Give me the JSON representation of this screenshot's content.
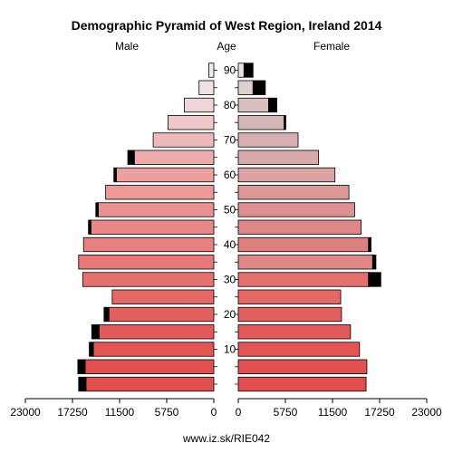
{
  "chart_data": {
    "type": "bar",
    "title": "Demographic Pyramid of West Region, Ireland 2014",
    "left_label": "Male",
    "center_label": "Age",
    "right_label": "Female",
    "footer": "www.iz.sk/RIE042",
    "xlim": [
      0,
      23000
    ],
    "x_ticks": [
      "23000",
      "17250",
      "11500",
      "5750",
      "0"
    ],
    "x_ticks_right": [
      "0",
      "5750",
      "11500",
      "17250",
      "23000"
    ],
    "age_ticks": [
      "10",
      "20",
      "30",
      "40",
      "50",
      "60",
      "70",
      "80",
      "90"
    ],
    "age_groups": [
      "0-4",
      "5-9",
      "10-14",
      "15-19",
      "20-24",
      "25-29",
      "30-34",
      "35-39",
      "40-44",
      "45-49",
      "50-54",
      "55-59",
      "60-64",
      "65-69",
      "70-74",
      "75-79",
      "80-84",
      "85-89",
      "90+"
    ],
    "series": [
      {
        "name": "Male",
        "values": [
          15600,
          15700,
          14700,
          14000,
          12800,
          12400,
          16000,
          16500,
          15900,
          15000,
          14100,
          13200,
          11900,
          9700,
          7400,
          5600,
          3600,
          1800,
          600
        ]
      },
      {
        "name": "Female",
        "values": [
          15600,
          15700,
          14800,
          13700,
          12600,
          12500,
          15900,
          16400,
          15900,
          15000,
          14200,
          13500,
          11800,
          9800,
          7300,
          5600,
          3700,
          1800,
          700
        ]
      }
    ],
    "excess": {
      "male": [
        900,
        900,
        500,
        900,
        600,
        0,
        0,
        0,
        0,
        300,
        300,
        0,
        300,
        800,
        0,
        0,
        0,
        0,
        0
      ],
      "female": [
        0,
        0,
        0,
        0,
        0,
        0,
        1500,
        400,
        300,
        0,
        0,
        0,
        0,
        0,
        0,
        200,
        1000,
        1500,
        1100
      ]
    },
    "colors": {
      "male": [
        "#e05050",
        "#e05252",
        "#e15555",
        "#e25a5a",
        "#e36060",
        "#e46868",
        "#e57070",
        "#e67878",
        "#e78080",
        "#e88888",
        "#e99090",
        "#ea9898",
        "#eba0a0",
        "#ecacac",
        "#edbaba",
        "#eec8c8",
        "#efd6d6",
        "#f0e2e2",
        "#f2eaea"
      ],
      "female": [
        "#e05050",
        "#e05252",
        "#e15555",
        "#e25a5a",
        "#e36060",
        "#e46868",
        "#e57070",
        "#e08888",
        "#dc8080",
        "#dd8888",
        "#dc9090",
        "#dc9898",
        "#daa4a4",
        "#d9aaaa",
        "#d8b0b0",
        "#d4b6b6",
        "#d6c0c0",
        "#e0d0d0",
        "#ece0e0"
      ],
      "excess": "#000000"
    }
  }
}
